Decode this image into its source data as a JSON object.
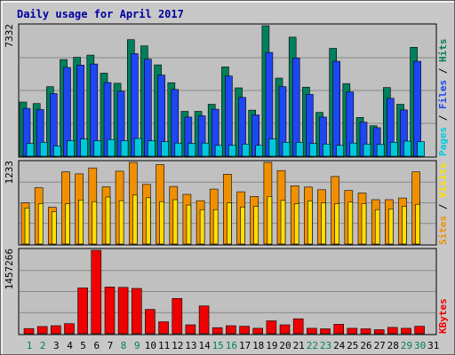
{
  "chart_data": {
    "title": "Daily usage for April 2017",
    "days": [
      "1",
      "2",
      "3",
      "4",
      "5",
      "6",
      "7",
      "8",
      "9",
      "10",
      "11",
      "12",
      "13",
      "14",
      "15",
      "16",
      "17",
      "18",
      "19",
      "20",
      "21",
      "22",
      "23",
      "24",
      "25",
      "26",
      "27",
      "28",
      "29",
      "30",
      "31"
    ],
    "weekend_days": [
      1,
      2,
      8,
      9,
      15,
      16,
      22,
      23,
      29,
      30
    ],
    "panels": [
      {
        "name": "pages-files-hits",
        "type": "bar",
        "max_label": "7332",
        "ylim": [
          0,
          7332
        ],
        "right_labels": [
          "Pages",
          "Files",
          "Hits"
        ],
        "series": [
          {
            "name": "Hits",
            "color": "#00805c",
            "values": [
              3045,
              2960,
              3905,
              5430,
              5560,
              5680,
              4670,
              4100,
              6550,
              6200,
              5130,
              4130,
              2520,
              2520,
              2920,
              5020,
              3840,
              2590,
              7332,
              4390,
              6690,
              3880,
              2460,
              6060,
              4080,
              2180,
              1710,
              3860,
              2920,
              6120,
              0
            ]
          },
          {
            "name": "Files",
            "color": "#1e46f5",
            "values": [
              2690,
              2620,
              3520,
              4990,
              5120,
              5180,
              4140,
              3650,
              5760,
              5450,
              4560,
              3750,
              2200,
              2270,
              2640,
              4510,
              3300,
              2320,
              5830,
              3910,
              5520,
              3470,
              2200,
              5330,
              3610,
              1910,
              1600,
              3250,
              2600,
              5330,
              0
            ]
          },
          {
            "name": "Pages",
            "color": "#00c8dc",
            "values": [
              720,
              780,
              580,
              870,
              970,
              870,
              940,
              870,
              1000,
              870,
              820,
              740,
              720,
              740,
              610,
              610,
              680,
              610,
              970,
              780,
              780,
              720,
              680,
              610,
              740,
              680,
              660,
              780,
              850,
              820,
              0
            ]
          }
        ]
      },
      {
        "name": "sites-visits",
        "type": "bar",
        "max_label": "1233",
        "ylim": [
          0,
          1233
        ],
        "right_labels": [
          "Sites",
          "Visits"
        ],
        "series": [
          {
            "name": "Visits",
            "color": "#f09000",
            "values": [
              620,
              850,
              555,
              1090,
              1060,
              1150,
              865,
              1100,
              1233,
              900,
              1200,
              870,
              750,
              655,
              830,
              1055,
              790,
              720,
              1233,
              1110,
              880,
              860,
              820,
              1020,
              810,
              770,
              670,
              670,
              695,
              1090,
              0
            ]
          },
          {
            "name": "Sites",
            "color": "#ffe000",
            "values": [
              545,
              610,
              490,
              610,
              665,
              640,
              710,
              655,
              740,
              700,
              640,
              670,
              590,
              520,
              520,
              620,
              560,
              570,
              720,
              660,
              610,
              650,
              620,
              610,
              635,
              610,
              520,
              530,
              570,
              600,
              0
            ]
          }
        ]
      },
      {
        "name": "kbytes",
        "type": "bar",
        "max_label": "1457266",
        "ylim": [
          0,
          1457266
        ],
        "right_labels": [
          "KBytes"
        ],
        "series": [
          {
            "name": "KBytes",
            "color": "#f00000",
            "values": [
              90000,
              125000,
              140000,
              175000,
              800000,
              1457266,
              815000,
              810000,
              790000,
              425000,
              208000,
              615000,
              155000,
              485000,
              105000,
              140000,
              130000,
              95000,
              225000,
              155000,
              260000,
              95000,
              85000,
              165000,
              95000,
              85000,
              70000,
              110000,
              95000,
              130000,
              0
            ]
          }
        ]
      }
    ]
  }
}
